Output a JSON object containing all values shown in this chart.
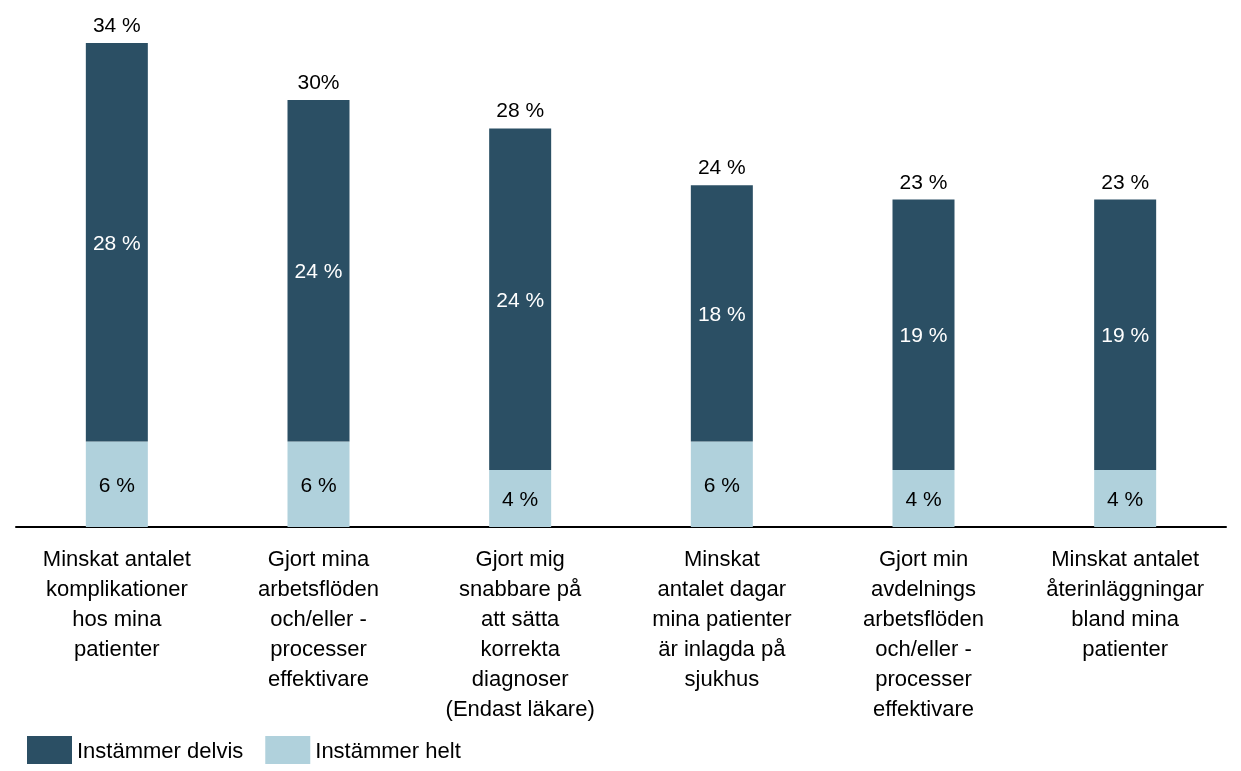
{
  "chart_data": {
    "type": "bar",
    "stacked": true,
    "categories": [
      "Minskat antalet\nkomplikationer\nhos mina\npatienter",
      "Gjort mina\narbetsflöden\noch/eller -\nprocesser\neffektivare",
      "Gjort mig\nsnabbare på\natt sätta\nkorrekta\ndiagnoser\n(Endast läkare)",
      "Minskat\nantalet dagar\nmina patienter\när inlagda på\nsjukhus",
      "Gjort min\navdelnings\narbetsflöden\noch/eller -\nprocesser\neffektivare",
      "Minskat antalet\nåterinläggningar\nbland mina\npatienter"
    ],
    "series": [
      {
        "name": "Instämmer helt",
        "color": "#b0d1dc",
        "values": [
          6,
          6,
          4,
          6,
          4,
          4
        ],
        "value_labels": [
          "6 %",
          "6 %",
          "4 %",
          "6 %",
          "4 %",
          "4 %"
        ]
      },
      {
        "name": "Instämmer delvis",
        "color": "#2b4f64",
        "values": [
          28,
          24,
          24,
          18,
          19,
          19
        ],
        "value_labels": [
          "28 %",
          "24 %",
          "24 %",
          "18 %",
          "19 %",
          "19 %"
        ]
      }
    ],
    "totals": [
      "34 %",
      "30%",
      "28 %",
      "24 %",
      "23 %",
      "23 %"
    ],
    "ylim": [
      0,
      34
    ],
    "tick_labels": "x",
    "grid": false,
    "legend": "bottom left"
  }
}
